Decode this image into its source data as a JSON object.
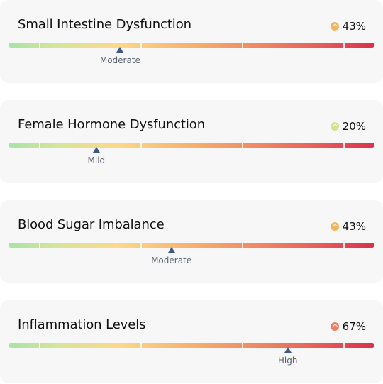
{
  "cards": [
    {
      "title": "Small Intestine Dysfunction",
      "percent": "43%",
      "level": "Moderate",
      "marker_fraction": 0.305,
      "dot_color": "#f3b55b"
    },
    {
      "title": "Female Hormone Dysfunction",
      "percent": "20%",
      "level": "Mild",
      "marker_fraction": 0.24,
      "dot_color": "#d9e08a"
    },
    {
      "title": "Blood Sugar Imbalance",
      "percent": "43%",
      "level": "Moderate",
      "marker_fraction": 0.445,
      "dot_color": "#f3b55b"
    },
    {
      "title": "Inflammation Levels",
      "percent": "67%",
      "level": "High",
      "marker_fraction": 0.763,
      "dot_color": "#ee7e63"
    }
  ]
}
